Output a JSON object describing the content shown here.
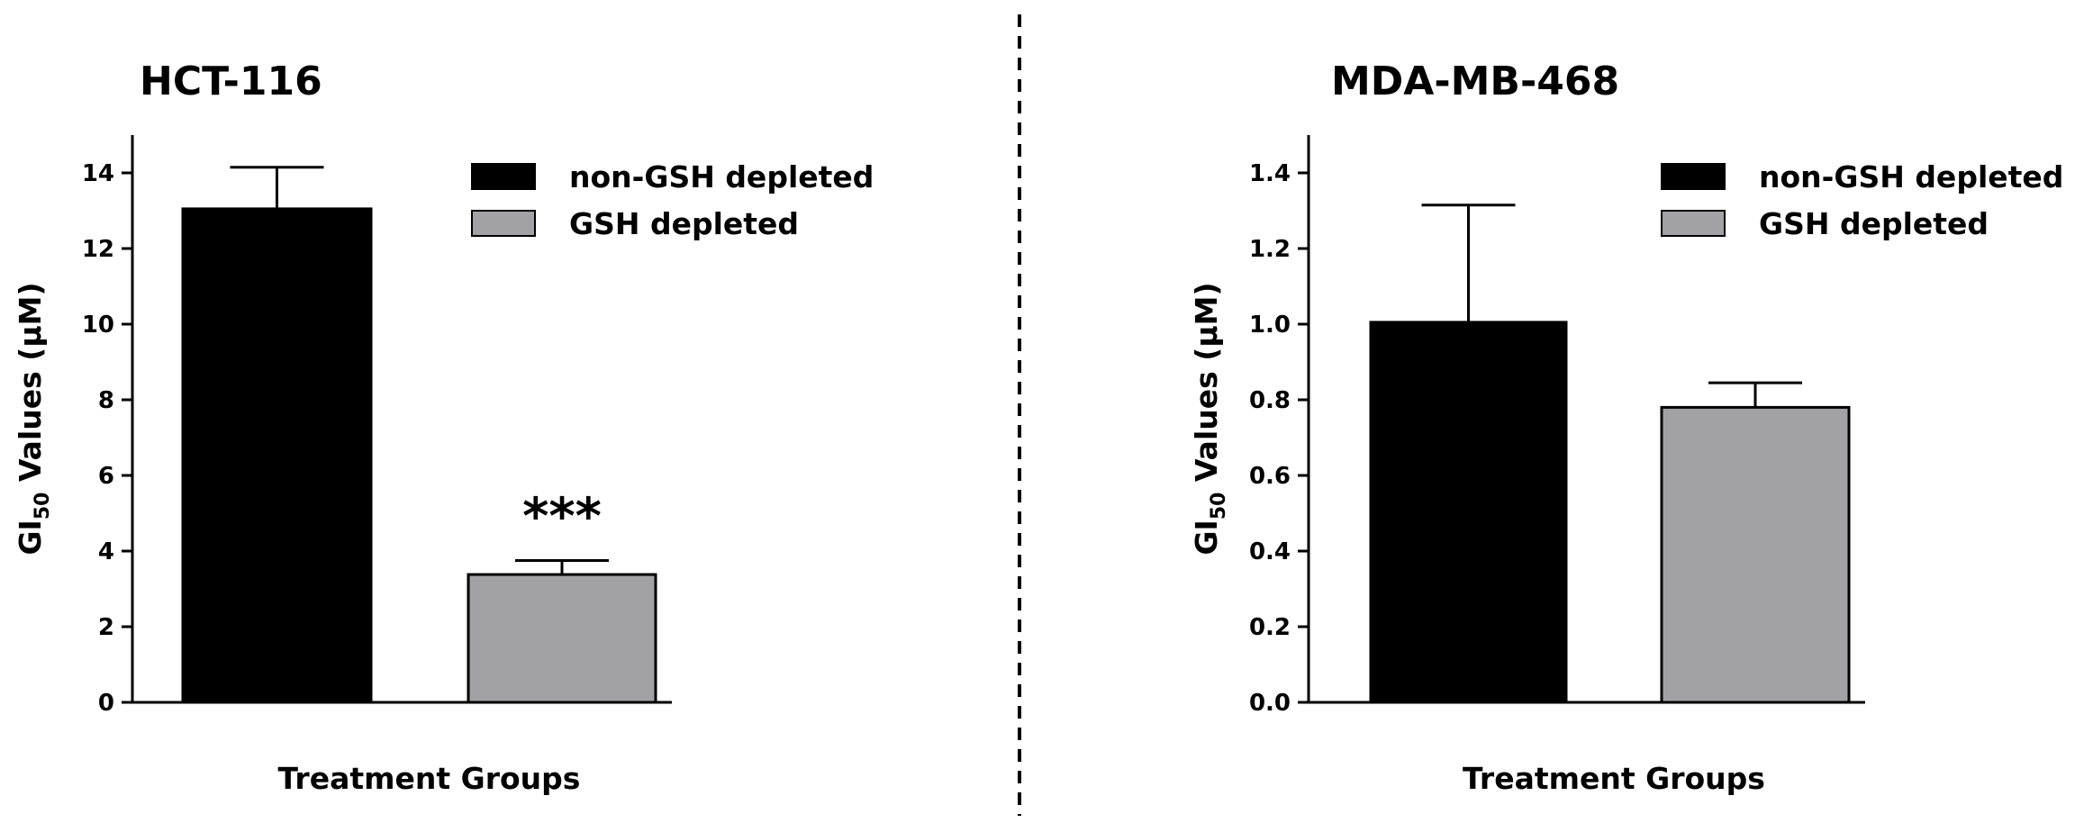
{
  "chart_data": [
    {
      "type": "bar",
      "title": "HCT-116",
      "xlabel": "Treatment Groups",
      "ylabel_main": "GI",
      "ylabel_sub": "50",
      "ylabel_rest": " Values (μM)",
      "ylim": [
        0,
        15
      ],
      "yticks": [
        0,
        2,
        4,
        6,
        8,
        10,
        12,
        14
      ],
      "ytick_labels": [
        "0",
        "2",
        "4",
        "6",
        "8",
        "10",
        "12",
        "14"
      ],
      "categories": [
        "non-GSH depleted",
        "GSH depleted"
      ],
      "values": [
        13.05,
        3.38
      ],
      "errors": [
        1.1,
        0.37
      ],
      "colors": [
        "#000000",
        "#a2a2a6"
      ],
      "annotations": [
        {
          "bar_index": 1,
          "text": "***"
        }
      ],
      "legend": {
        "position": "top-right",
        "entries": [
          {
            "label": "non-GSH depleted",
            "color": "#000000"
          },
          {
            "label": "GSH depleted",
            "color": "#a2a2a6"
          }
        ]
      },
      "grid": false
    },
    {
      "type": "bar",
      "title": "MDA-MB-468",
      "xlabel": "Treatment Groups",
      "ylabel_main": "GI",
      "ylabel_sub": "50",
      "ylabel_rest": " Values (μM)",
      "ylim": [
        0,
        1.5
      ],
      "yticks": [
        0,
        0.2,
        0.4,
        0.6,
        0.8,
        1.0,
        1.2,
        1.4
      ],
      "ytick_labels": [
        "0.0",
        "0.2",
        "0.4",
        "0.6",
        "0.8",
        "1.0",
        "1.2",
        "1.4"
      ],
      "categories": [
        "non-GSH depleted",
        "GSH depleted"
      ],
      "values": [
        1.005,
        0.78
      ],
      "errors": [
        0.31,
        0.065
      ],
      "colors": [
        "#000000",
        "#a2a2a6"
      ],
      "annotations": [],
      "legend": {
        "position": "top-right",
        "entries": [
          {
            "label": "non-GSH depleted",
            "color": "#000000"
          },
          {
            "label": "GSH depleted",
            "color": "#a2a2a6"
          }
        ]
      },
      "grid": false
    }
  ]
}
